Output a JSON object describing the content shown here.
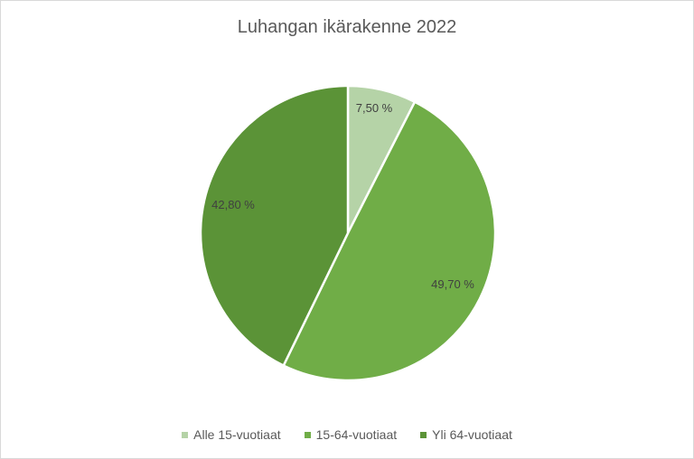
{
  "chart_data": {
    "type": "pie",
    "title": "Luhangan ikärakenne 2022",
    "start_angle": "top",
    "direction": "clockwise",
    "slices": [
      {
        "name": "Alle 15-vuotiaat",
        "value": 7.5,
        "label": "7,50 %",
        "color": "#b5d3a7"
      },
      {
        "name": "15-64-vuotiaat",
        "value": 49.7,
        "label": "49,70 %",
        "color": "#70ad47"
      },
      {
        "name": "Yli 64-vuotiaat",
        "value": 42.8,
        "label": "42,80 %",
        "color": "#5b9337"
      }
    ],
    "legend_position": "bottom"
  }
}
